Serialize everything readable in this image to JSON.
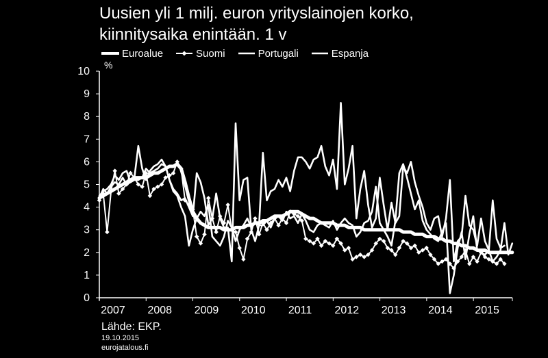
{
  "chart_data": {
    "type": "line",
    "title": [
      "Uusien yli 1 milj. euron yrityslainojen korko,",
      "kiinnitysaika enintään. 1 v"
    ],
    "ylabel": "%",
    "xlabel": "",
    "ylim": [
      0,
      10
    ],
    "yticks": [
      "0",
      "1",
      "2",
      "3",
      "4",
      "5",
      "6",
      "7",
      "8",
      "9",
      "10"
    ],
    "xlim": [
      2007.0,
      2015.833
    ],
    "xticks": [
      "2007",
      "2008",
      "2009",
      "2010",
      "2011",
      "2012",
      "2013",
      "2014",
      "2015"
    ],
    "grid": false,
    "legend_position": "top",
    "series": [
      {
        "name": "Euroalue",
        "style": "thick",
        "x_start": 2007.0,
        "step": 0.0833,
        "values": [
          4.4,
          4.5,
          4.6,
          4.7,
          4.8,
          4.9,
          5.0,
          5.1,
          5.2,
          5.3,
          5.3,
          5.3,
          5.3,
          5.4,
          5.5,
          5.5,
          5.6,
          5.7,
          5.8,
          5.8,
          5.9,
          5.7,
          5.1,
          4.4,
          3.8,
          3.5,
          3.3,
          3.2,
          3.1,
          3.1,
          3.1,
          3.1,
          3.0,
          3.0,
          3.0,
          3.1,
          3.1,
          3.1,
          3.2,
          3.2,
          3.3,
          3.3,
          3.4,
          3.4,
          3.5,
          3.6,
          3.6,
          3.6,
          3.7,
          3.8,
          3.8,
          3.8,
          3.7,
          3.6,
          3.5,
          3.5,
          3.4,
          3.3,
          3.3,
          3.3,
          3.3,
          3.2,
          3.2,
          3.2,
          3.1,
          3.1,
          3.1,
          3.1,
          3.0,
          3.0,
          3.0,
          3.0,
          3.0,
          3.0,
          3.0,
          3.0,
          3.0,
          3.0,
          2.9,
          2.9,
          2.9,
          2.8,
          2.8,
          2.8,
          2.7,
          2.7,
          2.7,
          2.6,
          2.6,
          2.5,
          2.5,
          2.4,
          2.4,
          2.3,
          2.3,
          2.2,
          2.2,
          2.1,
          2.1,
          2.1,
          2.0,
          2.0,
          2.0,
          2.0,
          2.0,
          2.0,
          2.0
        ]
      },
      {
        "name": "Suomi",
        "style": "markers",
        "x_start": 2007.0,
        "step": 0.0833,
        "values": [
          4.3,
          4.6,
          2.9,
          4.7,
          5.6,
          4.6,
          4.8,
          5.0,
          5.5,
          5.3,
          5.0,
          4.9,
          5.5,
          4.5,
          4.8,
          4.9,
          5.0,
          5.3,
          5.4,
          5.5,
          6.0,
          5.7,
          4.3,
          4.1,
          3.9,
          2.7,
          2.4,
          2.8,
          4.4,
          3.5,
          2.9,
          3.6,
          3.3,
          4.1,
          3.0,
          2.9,
          2.2,
          1.7,
          2.6,
          2.9,
          3.5,
          2.8,
          3.3,
          3.0,
          3.3,
          3.5,
          3.2,
          3.5,
          3.3,
          3.8,
          3.7,
          3.6,
          3.4,
          2.6,
          2.5,
          2.4,
          2.6,
          2.3,
          2.5,
          2.4,
          2.3,
          2.6,
          2.4,
          2.1,
          2.2,
          1.7,
          1.8,
          1.9,
          1.8,
          1.9,
          2.1,
          2.4,
          2.6,
          2.5,
          2.2,
          2.1,
          1.9,
          2.2,
          2.5,
          2.4,
          2.2,
          2.3,
          2.0,
          2.1,
          2.2,
          1.9,
          1.7,
          1.5,
          1.6,
          1.7,
          1.5,
          1.3,
          1.6,
          1.8,
          2.1,
          1.5,
          1.8,
          1.6,
          2.0,
          1.8,
          1.7,
          1.6,
          1.5,
          1.7,
          1.5
        ]
      },
      {
        "name": "Portugali",
        "style": "line",
        "x_start": 2007.0,
        "step": 0.0833,
        "values": [
          4.5,
          4.7,
          4.8,
          5.0,
          5.4,
          5.2,
          5.5,
          5.6,
          5.1,
          5.3,
          6.7,
          5.7,
          5.2,
          5.6,
          5.8,
          5.9,
          6.1,
          5.8,
          5.2,
          4.8,
          4.6,
          4.3,
          4.4,
          4.0,
          3.6,
          5.5,
          5.1,
          4.4,
          3.2,
          3.5,
          4.6,
          3.5,
          3.1,
          3.1,
          1.6,
          7.7,
          4.3,
          5.2,
          5.3,
          3.0,
          2.5,
          3.2,
          6.4,
          4.3,
          4.7,
          4.8,
          5.2,
          4.9,
          5.3,
          4.7,
          5.6,
          6.2,
          6.2,
          6.0,
          5.7,
          6.1,
          6.2,
          6.7,
          5.8,
          5.4,
          6.1,
          4.8,
          8.6,
          5.0,
          5.7,
          6.7,
          3.5,
          4.8,
          5.6,
          4.1,
          3.1,
          3.5,
          5.3,
          4.1,
          3.0,
          4.2,
          3.3,
          3.6,
          5.8,
          5.5,
          6.0,
          5.1,
          4.5,
          4.0,
          3.3,
          3.0,
          3.5,
          3.6,
          2.7,
          3.5,
          5.2,
          1.6,
          2.5,
          2.7,
          4.5,
          3.2,
          3.0,
          2.3,
          3.5,
          2.5,
          2.1,
          4.3,
          2.6,
          2.2,
          2.3
        ]
      },
      {
        "name": "Espanja",
        "style": "line",
        "x_start": 2007.0,
        "step": 0.0833,
        "values": [
          4.4,
          4.8,
          4.6,
          4.9,
          5.1,
          5.0,
          5.3,
          5.0,
          5.1,
          5.2,
          5.2,
          5.3,
          5.7,
          5.5,
          5.6,
          5.7,
          5.9,
          5.8,
          5.2,
          4.7,
          4.5,
          4.0,
          3.6,
          2.3,
          3.0,
          3.5,
          3.8,
          3.6,
          4.1,
          2.7,
          2.5,
          2.3,
          2.7,
          3.4,
          3.1,
          2.5,
          3.0,
          3.2,
          3.5,
          3.1,
          3.3,
          3.2,
          3.2,
          3.4,
          3.1,
          3.5,
          3.6,
          3.4,
          3.8,
          3.5,
          3.6,
          3.3,
          3.7,
          3.4,
          3.0,
          2.9,
          3.2,
          3.3,
          3.2,
          3.1,
          3.4,
          3.0,
          3.3,
          3.5,
          3.3,
          3.2,
          2.7,
          2.9,
          3.3,
          3.4,
          3.8,
          4.9,
          3.3,
          3.0,
          2.7,
          2.3,
          3.4,
          5.5,
          5.9,
          5.3,
          4.6,
          3.9,
          4.3,
          3.4,
          3.0,
          2.8,
          2.6,
          2.5,
          2.9,
          3.3,
          0.2,
          1.0,
          2.2,
          2.9,
          1.7,
          2.8,
          3.6,
          2.1,
          2.0,
          1.9,
          2.1,
          1.6,
          1.8,
          2.1,
          3.3,
          1.9,
          2.4
        ]
      }
    ]
  },
  "footer": {
    "source": "Lähde: EKP.",
    "date": "19.10.2015",
    "site": "eurojatalous.fi"
  }
}
